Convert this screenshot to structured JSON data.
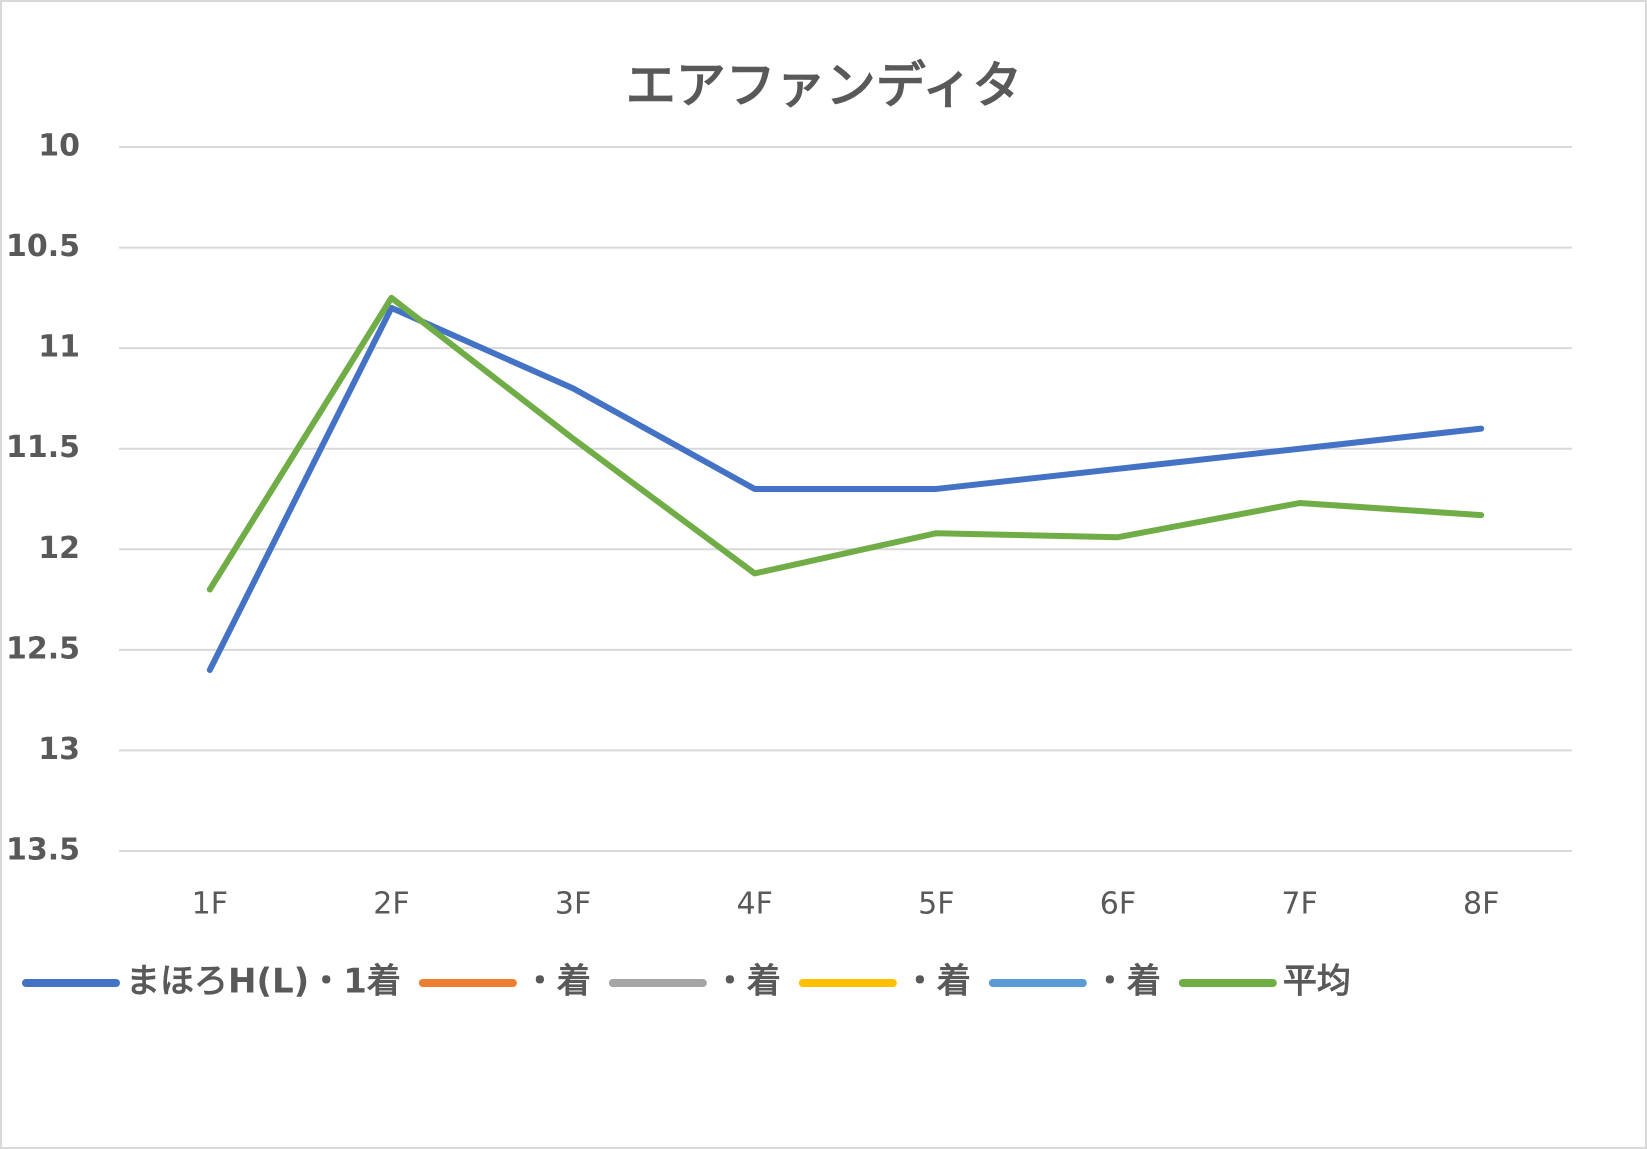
{
  "chart_data": {
    "type": "line",
    "title": "エアファンディタ",
    "categories": [
      "1F",
      "2F",
      "3F",
      "4F",
      "5F",
      "6F",
      "7F",
      "8F"
    ],
    "series": [
      {
        "name": "まほろH(L)・1着",
        "color": "#4472c4",
        "values": [
          12.6,
          10.8,
          11.2,
          11.7,
          11.7,
          11.6,
          11.5,
          11.4
        ]
      },
      {
        "name": "・着",
        "color": "#ed7d31",
        "values": [
          null,
          null,
          null,
          null,
          null,
          null,
          null,
          null
        ]
      },
      {
        "name": "・着",
        "color": "#a5a5a5",
        "values": [
          null,
          null,
          null,
          null,
          null,
          null,
          null,
          null
        ]
      },
      {
        "name": "・着",
        "color": "#ffc000",
        "values": [
          null,
          null,
          null,
          null,
          null,
          null,
          null,
          null
        ]
      },
      {
        "name": "・着",
        "color": "#5b9bd5",
        "values": [
          null,
          null,
          null,
          null,
          null,
          null,
          null,
          null
        ]
      },
      {
        "name": "平均",
        "color": "#70ad47",
        "values": [
          12.2,
          10.75,
          11.45,
          12.12,
          11.92,
          11.94,
          11.77,
          11.83
        ]
      }
    ],
    "ylim": [
      10,
      13.5
    ],
    "yticks": [
      10,
      10.5,
      11,
      11.5,
      12,
      12.5,
      13,
      13.5
    ],
    "y_reversed": true,
    "grid": true,
    "legend": "bottom"
  }
}
